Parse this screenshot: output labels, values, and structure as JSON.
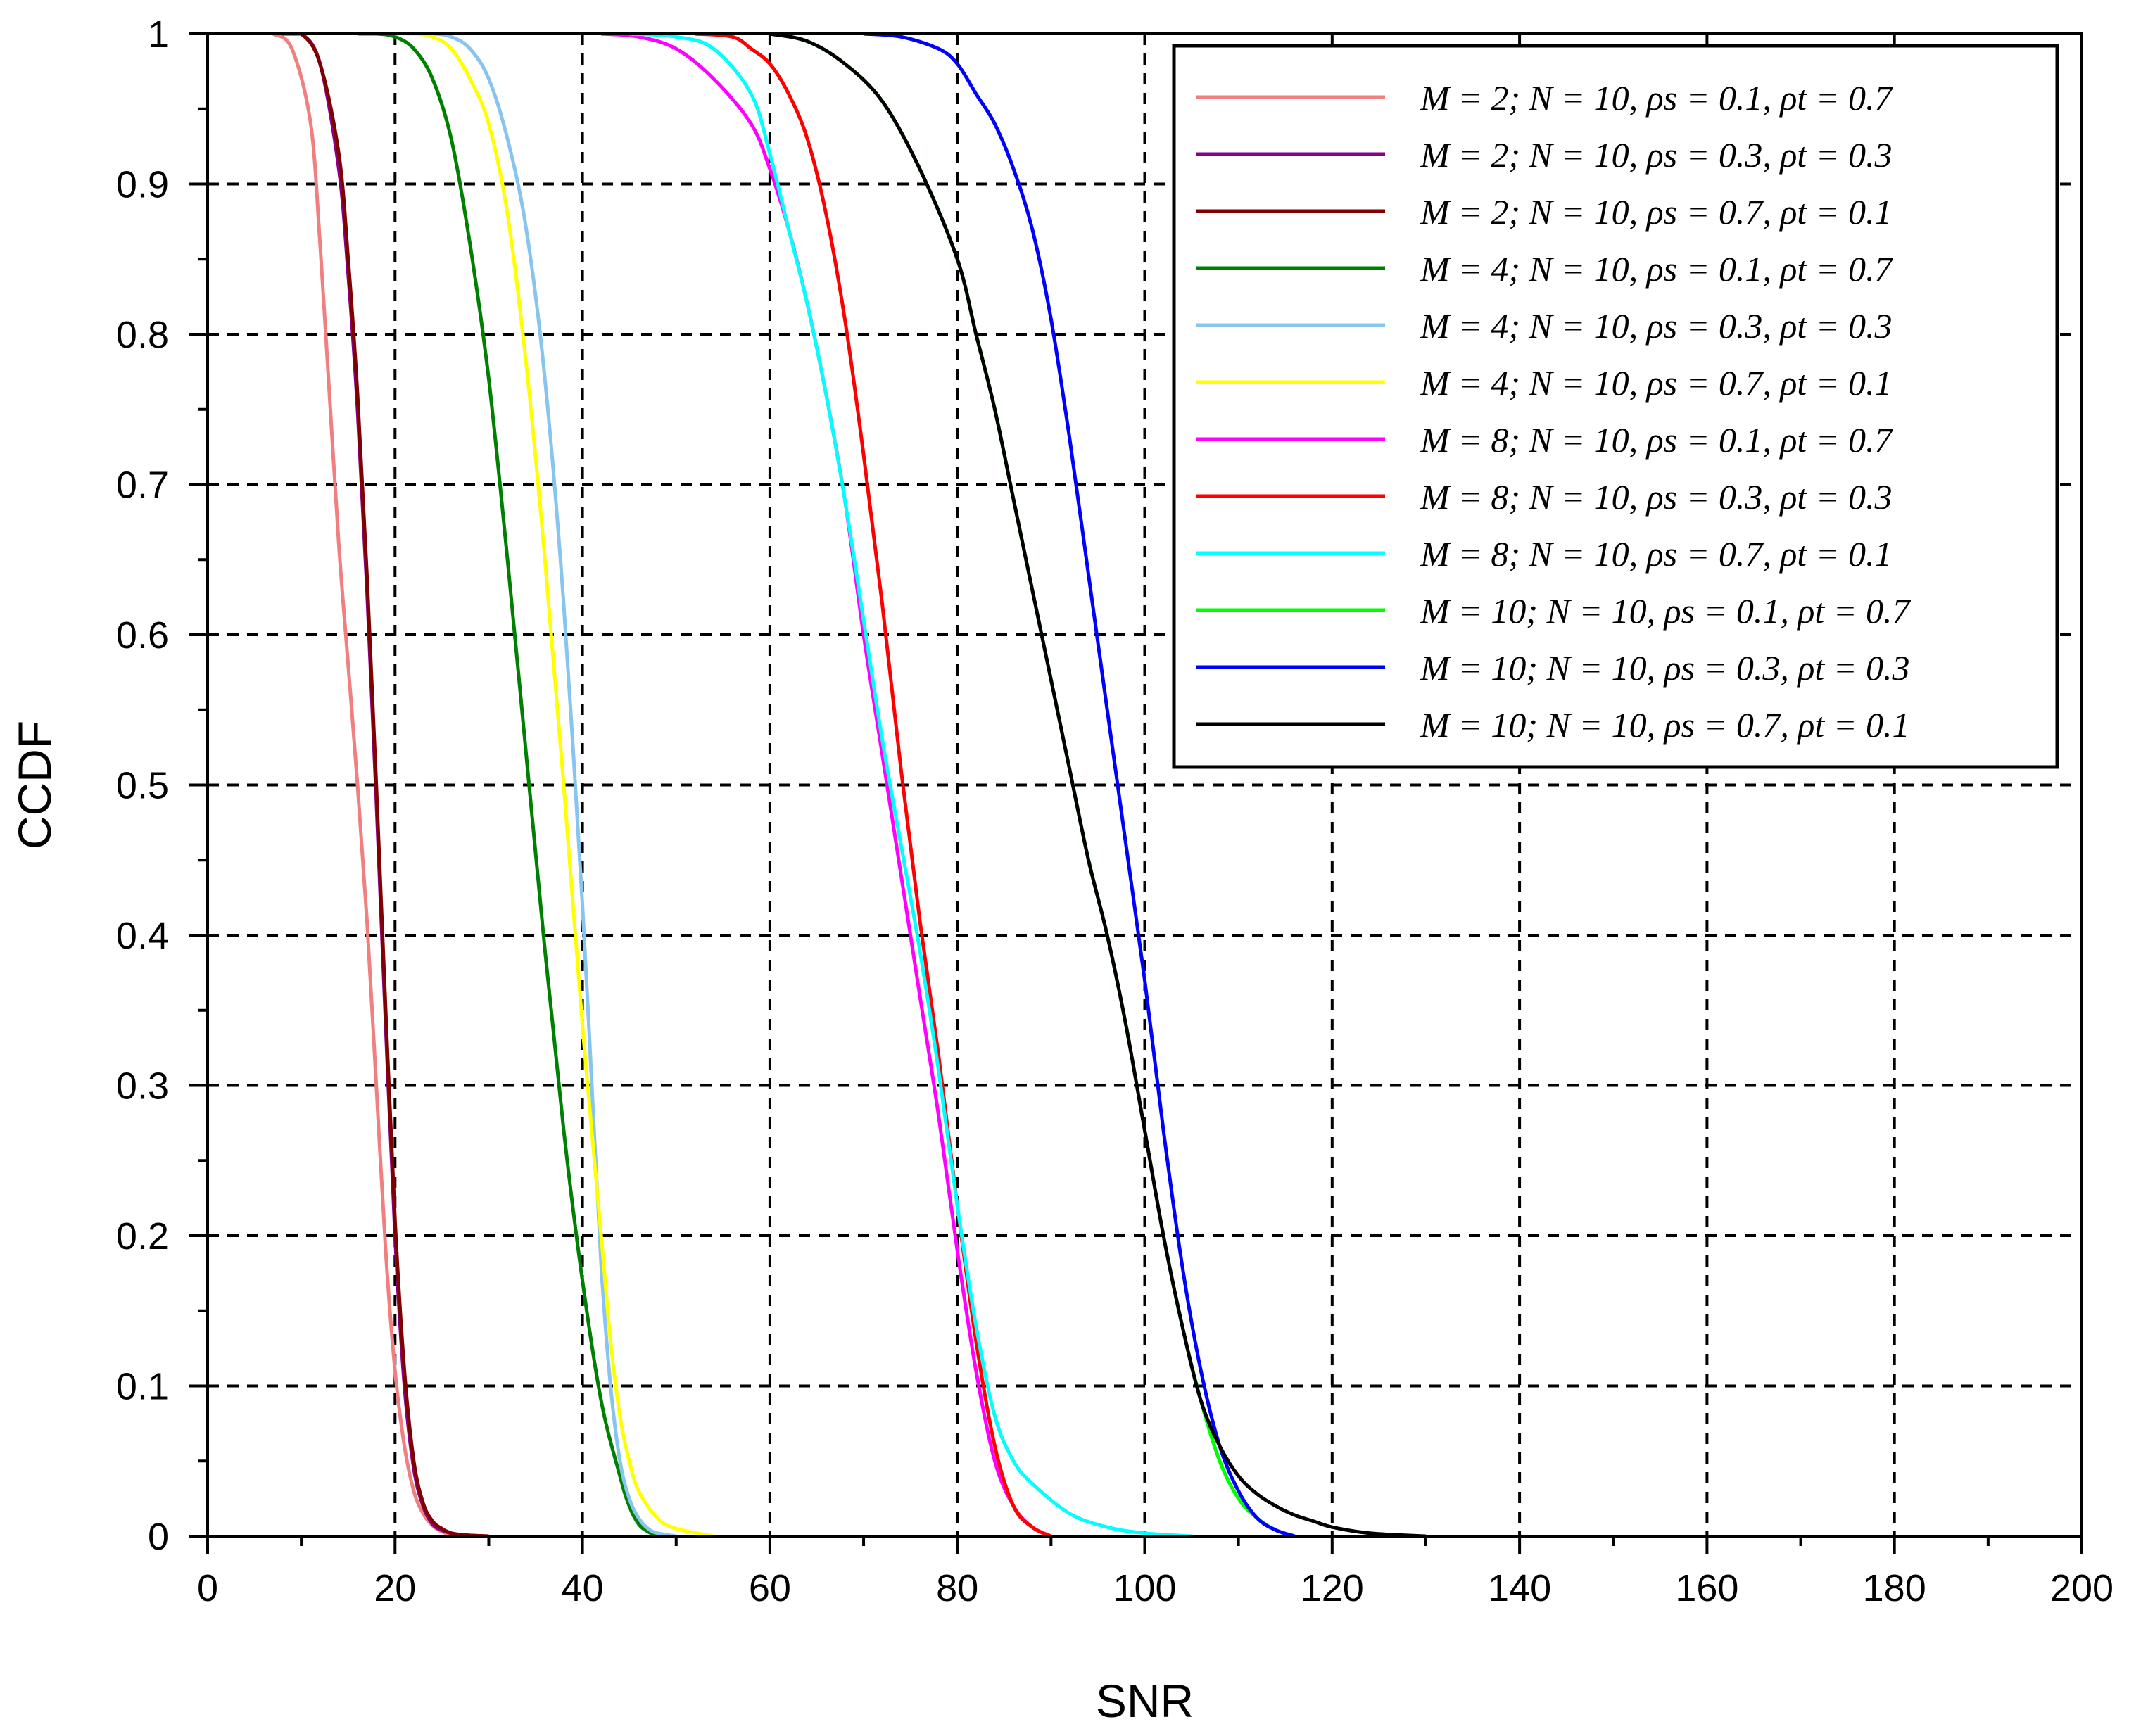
{
  "chart_data": {
    "type": "line",
    "title": "",
    "xlabel": "SNR",
    "ylabel": "CCDF",
    "xlim": [
      0,
      200
    ],
    "ylim": [
      0,
      1
    ],
    "xticks": [
      0,
      20,
      40,
      60,
      80,
      100,
      120,
      140,
      160,
      180,
      200
    ],
    "xtick_labels": [
      "0",
      "20",
      "40",
      "60",
      "80",
      "100",
      "120",
      "140",
      "160",
      "180",
      "200"
    ],
    "yticks": [
      0,
      0.1,
      0.2,
      0.3,
      0.4,
      0.5,
      0.6,
      0.7,
      0.8,
      0.9,
      1
    ],
    "ytick_labels": [
      "0",
      "0.1",
      "0.2",
      "0.3",
      "0.4",
      "0.5",
      "0.6",
      "0.7",
      "0.8",
      "0.9",
      "1"
    ],
    "grid": true,
    "legend_position": "top-right",
    "series": [
      {
        "name": "M = 2; N = 10, ρs = 0.1, ρt = 0.7",
        "color": "#f08080",
        "x": [
          7,
          9,
          11,
          12,
          13,
          14,
          15,
          16,
          17,
          18,
          19,
          20,
          21,
          22,
          23,
          24,
          25,
          26,
          27
        ],
        "values": [
          1,
          0.99,
          0.94,
          0.86,
          0.76,
          0.66,
          0.58,
          0.5,
          0.41,
          0.3,
          0.19,
          0.11,
          0.06,
          0.03,
          0.015,
          0.007,
          0.003,
          0.001,
          0
        ]
      },
      {
        "name": "M = 2; N = 10, ρs = 0.3, ρt = 0.3",
        "color": "#8b008b",
        "x": [
          8,
          10,
          12,
          14,
          15,
          16,
          17,
          18,
          19,
          20,
          21,
          22,
          23,
          24,
          25,
          26,
          27,
          28,
          30
        ],
        "values": [
          1,
          1,
          0.98,
          0.91,
          0.84,
          0.75,
          0.63,
          0.49,
          0.34,
          0.2,
          0.1,
          0.045,
          0.02,
          0.008,
          0.004,
          0.002,
          0.001,
          0.0005,
          0
        ]
      },
      {
        "name": "M = 2; N = 10, ρs = 0.7, ρt = 0.1",
        "color": "#800000",
        "x": [
          8,
          10,
          12,
          14,
          15,
          16,
          17,
          18,
          19,
          20,
          21,
          22,
          23,
          24,
          25,
          26,
          27,
          28,
          30
        ],
        "values": [
          1,
          1,
          0.98,
          0.92,
          0.85,
          0.76,
          0.64,
          0.5,
          0.35,
          0.21,
          0.11,
          0.05,
          0.022,
          0.01,
          0.005,
          0.002,
          0.001,
          0.0005,
          0
        ]
      },
      {
        "name": "M = 4; N = 10, ρs = 0.1, ρt = 0.7",
        "color": "#008000",
        "x": [
          16,
          18,
          20,
          22,
          24,
          26,
          28,
          30,
          32,
          34,
          36,
          38,
          40,
          42,
          44,
          45,
          46,
          47,
          48
        ],
        "values": [
          1,
          1,
          0.998,
          0.99,
          0.97,
          0.93,
          0.86,
          0.77,
          0.65,
          0.52,
          0.39,
          0.27,
          0.17,
          0.09,
          0.04,
          0.02,
          0.008,
          0.003,
          0
        ]
      },
      {
        "name": "M = 4; N = 10, ρs = 0.3, ρt = 0.3",
        "color": "#87c4f0",
        "x": [
          22,
          24,
          26,
          28,
          30,
          32,
          34,
          36,
          38,
          40,
          41,
          42,
          43,
          44,
          45,
          46,
          47,
          48,
          50
        ],
        "values": [
          1,
          1,
          0.998,
          0.99,
          0.97,
          0.93,
          0.87,
          0.77,
          0.62,
          0.42,
          0.3,
          0.18,
          0.1,
          0.05,
          0.025,
          0.012,
          0.005,
          0.002,
          0
        ]
      },
      {
        "name": "M = 4; N = 10, ρs = 0.7, ρt = 0.1",
        "color": "#ffff00",
        "x": [
          20,
          22,
          24,
          26,
          28,
          30,
          32,
          34,
          36,
          38,
          40,
          42,
          43,
          44,
          45,
          46,
          48,
          50,
          54
        ],
        "values": [
          1,
          1,
          0.998,
          0.99,
          0.97,
          0.94,
          0.88,
          0.78,
          0.65,
          0.5,
          0.34,
          0.2,
          0.13,
          0.08,
          0.05,
          0.03,
          0.012,
          0.005,
          0
        ]
      },
      {
        "name": "M = 8; N = 10, ρs = 0.1, ρt = 0.7",
        "color": "#ff00ff",
        "x": [
          42,
          46,
          50,
          54,
          58,
          60,
          62,
          64,
          66,
          68,
          70,
          72,
          74,
          76,
          78,
          80,
          82,
          84,
          86,
          88,
          90
        ],
        "values": [
          1,
          0.998,
          0.99,
          0.97,
          0.94,
          0.91,
          0.87,
          0.82,
          0.76,
          0.69,
          0.6,
          0.52,
          0.44,
          0.36,
          0.28,
          0.19,
          0.11,
          0.05,
          0.02,
          0.006,
          0
        ]
      },
      {
        "name": "M = 8; N = 10, ρs = 0.3, ρt = 0.3",
        "color": "#ff0000",
        "x": [
          52,
          56,
          58,
          60,
          62,
          64,
          66,
          68,
          70,
          72,
          74,
          76,
          78,
          80,
          82,
          84,
          86,
          88,
          90
        ],
        "values": [
          1,
          0.998,
          0.99,
          0.98,
          0.96,
          0.93,
          0.88,
          0.81,
          0.72,
          0.62,
          0.51,
          0.41,
          0.32,
          0.22,
          0.13,
          0.06,
          0.02,
          0.006,
          0
        ]
      },
      {
        "name": "M = 8; N = 10, ρs = 0.7, ρt = 0.1",
        "color": "#00ffff",
        "x": [
          45,
          50,
          54,
          58,
          60,
          62,
          64,
          66,
          68,
          70,
          72,
          74,
          76,
          78,
          80,
          82,
          84,
          86,
          88,
          92,
          96,
          100,
          105
        ],
        "values": [
          1,
          0.998,
          0.99,
          0.96,
          0.92,
          0.87,
          0.82,
          0.76,
          0.69,
          0.61,
          0.53,
          0.46,
          0.39,
          0.31,
          0.22,
          0.14,
          0.08,
          0.05,
          0.035,
          0.015,
          0.006,
          0.002,
          0
        ]
      },
      {
        "name": "M = 10; N = 10, ρs = 0.1, ρt = 0.7",
        "color": "#00ff00",
        "x": [
          60,
          64,
          68,
          72,
          76,
          80,
          82,
          84,
          86,
          88,
          90,
          92,
          94,
          96,
          98,
          100,
          102,
          104,
          106,
          108,
          110,
          112,
          114,
          116
        ],
        "values": [
          1,
          0.995,
          0.98,
          0.955,
          0.91,
          0.85,
          0.8,
          0.75,
          0.69,
          0.63,
          0.57,
          0.51,
          0.45,
          0.4,
          0.34,
          0.27,
          0.2,
          0.14,
          0.09,
          0.05,
          0.025,
          0.012,
          0.004,
          0
        ]
      },
      {
        "name": "M = 10; N = 10, ρs = 0.3, ρt = 0.3",
        "color": "#0000ff",
        "x": [
          70,
          74,
          78,
          80,
          82,
          84,
          86,
          88,
          90,
          92,
          94,
          96,
          98,
          100,
          102,
          104,
          106,
          108,
          110,
          112,
          114,
          116
        ],
        "values": [
          1,
          0.998,
          0.99,
          0.98,
          0.96,
          0.94,
          0.91,
          0.87,
          0.81,
          0.73,
          0.64,
          0.55,
          0.46,
          0.37,
          0.27,
          0.18,
          0.11,
          0.06,
          0.03,
          0.012,
          0.004,
          0
        ]
      },
      {
        "name": "M = 10; N = 10, ρs = 0.7, ρt = 0.1",
        "color": "#000000",
        "x": [
          60,
          64,
          68,
          72,
          76,
          80,
          82,
          84,
          86,
          88,
          90,
          92,
          94,
          96,
          98,
          100,
          102,
          104,
          106,
          108,
          110,
          112,
          114,
          116,
          118,
          120,
          124,
          130
        ],
        "values": [
          1,
          0.995,
          0.98,
          0.955,
          0.91,
          0.85,
          0.8,
          0.75,
          0.69,
          0.63,
          0.57,
          0.51,
          0.45,
          0.4,
          0.34,
          0.27,
          0.2,
          0.14,
          0.09,
          0.06,
          0.04,
          0.028,
          0.02,
          0.014,
          0.01,
          0.006,
          0.002,
          0
        ]
      }
    ]
  }
}
